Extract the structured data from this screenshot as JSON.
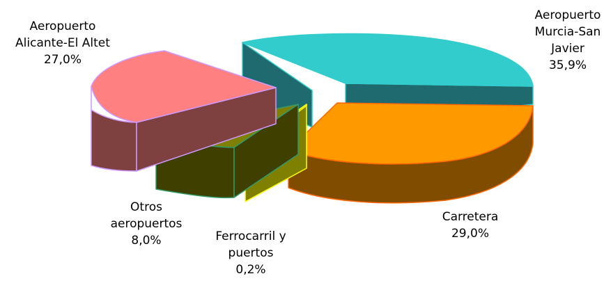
{
  "chart_data": {
    "type": "pie",
    "style": "3d-exploded",
    "slices": [
      {
        "label_lines": [
          "Aeropuerto",
          "Murcia-San",
          "Javier"
        ],
        "value_text": "35,9%",
        "value": 35.9,
        "top_color": "#33cccc",
        "side_color": "#1f6a6e",
        "edge_color": "#33cccc"
      },
      {
        "label_lines": [
          "Carretera"
        ],
        "value_text": "29,0%",
        "value": 29.0,
        "top_color": "#ff9900",
        "side_color": "#7f4c00",
        "edge_color": "#ff6600"
      },
      {
        "label_lines": [
          "Ferrocarril y",
          "puertos"
        ],
        "value_text": "0,2%",
        "value": 0.2,
        "top_color": "#808000",
        "side_color": "#808000",
        "edge_color": "#ffff00"
      },
      {
        "label_lines": [
          "Otros",
          "aeropuertos"
        ],
        "value_text": "8,0%",
        "value": 8.0,
        "top_color": "#808000",
        "side_color": "#3f3f00",
        "edge_color": "#33996b"
      },
      {
        "label_lines": [
          "Aeropuerto",
          "Alicante-El Altet"
        ],
        "value_text": "27,0%",
        "value": 27.0,
        "top_color": "#ff8080",
        "side_color": "#7f4040",
        "edge_color": "#cc99ff"
      }
    ]
  }
}
